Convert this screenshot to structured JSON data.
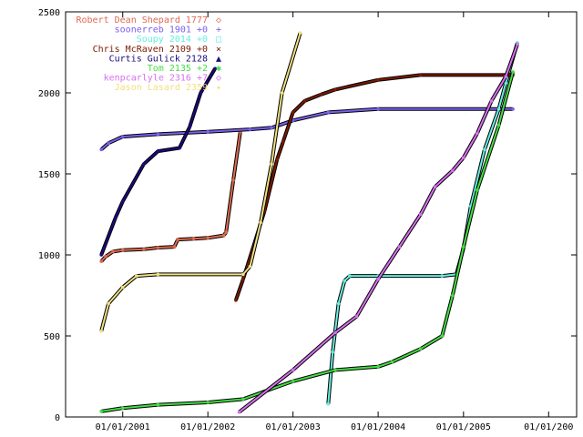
{
  "chart_data": {
    "type": "line",
    "title": "",
    "xlabel": "",
    "ylabel": "",
    "xlim": [
      "2000-05-01",
      "2006-05-01"
    ],
    "ylim": [
      0,
      2500
    ],
    "grid": false,
    "legend_position": "top-left",
    "y_ticks": [
      0,
      500,
      1000,
      1500,
      2000,
      2500
    ],
    "x_ticks": [
      {
        "date": "2001-01-01",
        "label": "01/01/2001"
      },
      {
        "date": "2002-01-01",
        "label": "01/01/2002"
      },
      {
        "date": "2003-01-01",
        "label": "01/01/2003"
      },
      {
        "date": "2004-01-01",
        "label": "01/01/2004"
      },
      {
        "date": "2005-01-01",
        "label": "01/01/2005"
      },
      {
        "date": "2006-01-01",
        "label": "01/01/200"
      }
    ],
    "series": [
      {
        "name": "Robert Dean Shepard 1777",
        "color": "#e06a50",
        "marker": "◇",
        "points": [
          [
            "2000-10-01",
            960
          ],
          [
            "2000-10-20",
            990
          ],
          [
            "2000-11-20",
            1020
          ],
          [
            "2001-01-01",
            1030
          ],
          [
            "2001-04-01",
            1035
          ],
          [
            "2001-06-01",
            1045
          ],
          [
            "2001-08-10",
            1050
          ],
          [
            "2001-08-25",
            1095
          ],
          [
            "2001-11-01",
            1100
          ],
          [
            "2002-01-01",
            1105
          ],
          [
            "2002-03-10",
            1120
          ],
          [
            "2002-03-20",
            1140
          ],
          [
            "2002-04-20",
            1460
          ],
          [
            "2002-05-20",
            1760
          ]
        ]
      },
      {
        "name": "soonerreb 1901 +0",
        "color": "#7b60f0",
        "marker": "+",
        "points": [
          [
            "2000-10-01",
            1650
          ],
          [
            "2000-11-01",
            1690
          ],
          [
            "2001-01-01",
            1730
          ],
          [
            "2001-06-01",
            1745
          ],
          [
            "2002-01-01",
            1760
          ],
          [
            "2002-07-01",
            1775
          ],
          [
            "2002-10-01",
            1785
          ],
          [
            "2003-01-01",
            1830
          ],
          [
            "2003-06-01",
            1880
          ],
          [
            "2004-01-01",
            1900
          ],
          [
            "2005-08-01",
            1900
          ]
        ]
      },
      {
        "name": "Soupy 2014 +0",
        "color": "#66eee0",
        "marker": "□",
        "points": [
          [
            "2003-06-01",
            80
          ],
          [
            "2003-06-20",
            400
          ],
          [
            "2003-07-15",
            700
          ],
          [
            "2003-08-10",
            840
          ],
          [
            "2003-09-01",
            870
          ],
          [
            "2004-01-01",
            870
          ],
          [
            "2004-10-01",
            870
          ],
          [
            "2004-12-01",
            880
          ],
          [
            "2005-01-01",
            1040
          ],
          [
            "2005-02-01",
            1300
          ],
          [
            "2005-04-01",
            1650
          ],
          [
            "2005-06-01",
            1900
          ],
          [
            "2005-07-01",
            2060
          ],
          [
            "2005-08-20",
            2310
          ]
        ]
      },
      {
        "name": "Chris McRaven 2109 +0",
        "color": "#7a1a00",
        "marker": "×",
        "points": [
          [
            "2002-05-01",
            720
          ],
          [
            "2002-06-01",
            850
          ],
          [
            "2002-09-01",
            1270
          ],
          [
            "2002-10-25",
            1590
          ],
          [
            "2002-11-20",
            1700
          ],
          [
            "2003-01-01",
            1880
          ],
          [
            "2003-02-20",
            1950
          ],
          [
            "2003-05-01",
            1990
          ],
          [
            "2003-07-01",
            2020
          ],
          [
            "2004-01-01",
            2080
          ],
          [
            "2004-07-01",
            2110
          ],
          [
            "2005-08-01",
            2110
          ]
        ]
      },
      {
        "name": "Curtis Gulick 2128",
        "color": "#1a0a80",
        "marker": "▲",
        "points": [
          [
            "2000-10-01",
            1000
          ],
          [
            "2000-12-01",
            1230
          ],
          [
            "2001-01-01",
            1330
          ],
          [
            "2001-04-01",
            1560
          ],
          [
            "2001-06-01",
            1640
          ],
          [
            "2001-09-01",
            1660
          ],
          [
            "2001-10-15",
            1790
          ],
          [
            "2001-12-01",
            2000
          ],
          [
            "2002-02-01",
            2150
          ]
        ]
      },
      {
        "name": "Tom 2135 +2",
        "color": "#44dd44",
        "marker": "✱",
        "points": [
          [
            "2000-10-01",
            35
          ],
          [
            "2001-01-01",
            55
          ],
          [
            "2001-06-01",
            75
          ],
          [
            "2002-01-01",
            90
          ],
          [
            "2002-06-01",
            110
          ],
          [
            "2003-01-01",
            220
          ],
          [
            "2003-07-01",
            290
          ],
          [
            "2004-01-01",
            310
          ],
          [
            "2004-03-01",
            340
          ],
          [
            "2004-07-01",
            420
          ],
          [
            "2004-10-01",
            500
          ],
          [
            "2004-11-15",
            750
          ],
          [
            "2005-01-01",
            1050
          ],
          [
            "2005-03-01",
            1400
          ],
          [
            "2005-06-01",
            1800
          ],
          [
            "2005-08-01",
            2130
          ]
        ]
      },
      {
        "name": "kenpcarlyle 2316 +7",
        "color": "#d870f0",
        "marker": "◇",
        "points": [
          [
            "2002-05-15",
            30
          ],
          [
            "2003-01-01",
            290
          ],
          [
            "2003-07-01",
            520
          ],
          [
            "2003-10-01",
            620
          ],
          [
            "2004-01-01",
            850
          ],
          [
            "2004-04-01",
            1050
          ],
          [
            "2004-07-01",
            1250
          ],
          [
            "2004-09-01",
            1420
          ],
          [
            "2004-11-15",
            1520
          ],
          [
            "2005-01-01",
            1600
          ],
          [
            "2005-03-01",
            1750
          ],
          [
            "2005-05-01",
            1950
          ],
          [
            "2005-07-01",
            2100
          ],
          [
            "2005-08-20",
            2300
          ]
        ]
      },
      {
        "name": "Jason Lasard 2359",
        "color": "#f0e080",
        "marker": "✦",
        "points": [
          [
            "2000-10-01",
            530
          ],
          [
            "2000-11-01",
            700
          ],
          [
            "2001-01-01",
            800
          ],
          [
            "2001-03-01",
            870
          ],
          [
            "2001-06-01",
            880
          ],
          [
            "2002-06-01",
            880
          ],
          [
            "2002-07-01",
            930
          ],
          [
            "2002-08-15",
            1200
          ],
          [
            "2002-10-01",
            1560
          ],
          [
            "2002-11-15",
            2000
          ],
          [
            "2003-02-01",
            2370
          ]
        ]
      }
    ]
  }
}
